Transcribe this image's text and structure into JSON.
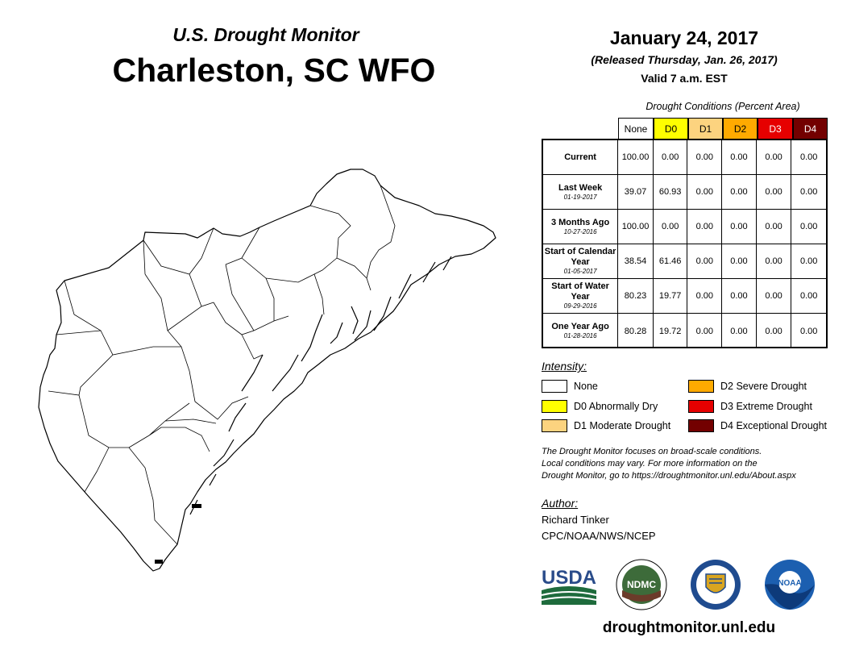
{
  "header": {
    "subtitle": "U.S. Drought Monitor",
    "region": "Charleston, SC WFO",
    "date": "January 24, 2017",
    "released": "(Released Thursday, Jan. 26, 2017)",
    "valid": "Valid 7 a.m. EST"
  },
  "table": {
    "title": "Drought Conditions (Percent Area)",
    "columns": [
      {
        "label": "None",
        "color": "#ffffff"
      },
      {
        "label": "D0",
        "color": "#ffff00"
      },
      {
        "label": "D1",
        "color": "#fcd37f"
      },
      {
        "label": "D2",
        "color": "#ffaa00"
      },
      {
        "label": "D3",
        "color": "#e60000"
      },
      {
        "label": "D4",
        "color": "#730000"
      }
    ],
    "rows": [
      {
        "label": "Current",
        "date": "",
        "values": [
          "100.00",
          "0.00",
          "0.00",
          "0.00",
          "0.00",
          "0.00"
        ]
      },
      {
        "label": "Last Week",
        "date": "01-19-2017",
        "values": [
          "39.07",
          "60.93",
          "0.00",
          "0.00",
          "0.00",
          "0.00"
        ]
      },
      {
        "label": "3 Months Ago",
        "date": "10-27-2016",
        "values": [
          "100.00",
          "0.00",
          "0.00",
          "0.00",
          "0.00",
          "0.00"
        ]
      },
      {
        "label": "Start of Calendar Year",
        "date": "01-05-2017",
        "values": [
          "38.54",
          "61.46",
          "0.00",
          "0.00",
          "0.00",
          "0.00"
        ]
      },
      {
        "label": "Start of Water Year",
        "date": "09-29-2016",
        "values": [
          "80.23",
          "19.77",
          "0.00",
          "0.00",
          "0.00",
          "0.00"
        ]
      },
      {
        "label": "One Year Ago",
        "date": "01-28-2016",
        "values": [
          "80.28",
          "19.72",
          "0.00",
          "0.00",
          "0.00",
          "0.00"
        ]
      }
    ]
  },
  "legend": {
    "title": "Intensity:",
    "items": [
      {
        "label": "None",
        "color": "#ffffff"
      },
      {
        "label": "D0 Abnormally Dry",
        "color": "#ffff00"
      },
      {
        "label": "D1 Moderate Drought",
        "color": "#fcd37f"
      },
      {
        "label": "D2 Severe Drought",
        "color": "#ffaa00"
      },
      {
        "label": "D3 Extreme Drought",
        "color": "#e60000"
      },
      {
        "label": "D4 Exceptional Drought",
        "color": "#730000"
      }
    ]
  },
  "note": {
    "line1": "The Drought Monitor focuses on broad-scale conditions.",
    "line2": "Local conditions may vary. For more information on the",
    "line3": "Drought Monitor, go to https://droughtmonitor.unl.edu/About.aspx"
  },
  "author": {
    "title": "Author:",
    "name": "Richard Tinker",
    "org": "CPC/NOAA/NWS/NCEP"
  },
  "logos": {
    "usda": "USDA",
    "ndmc": "NDMC",
    "noaa": "NOAA"
  },
  "website": "droughtmonitor.unl.edu"
}
